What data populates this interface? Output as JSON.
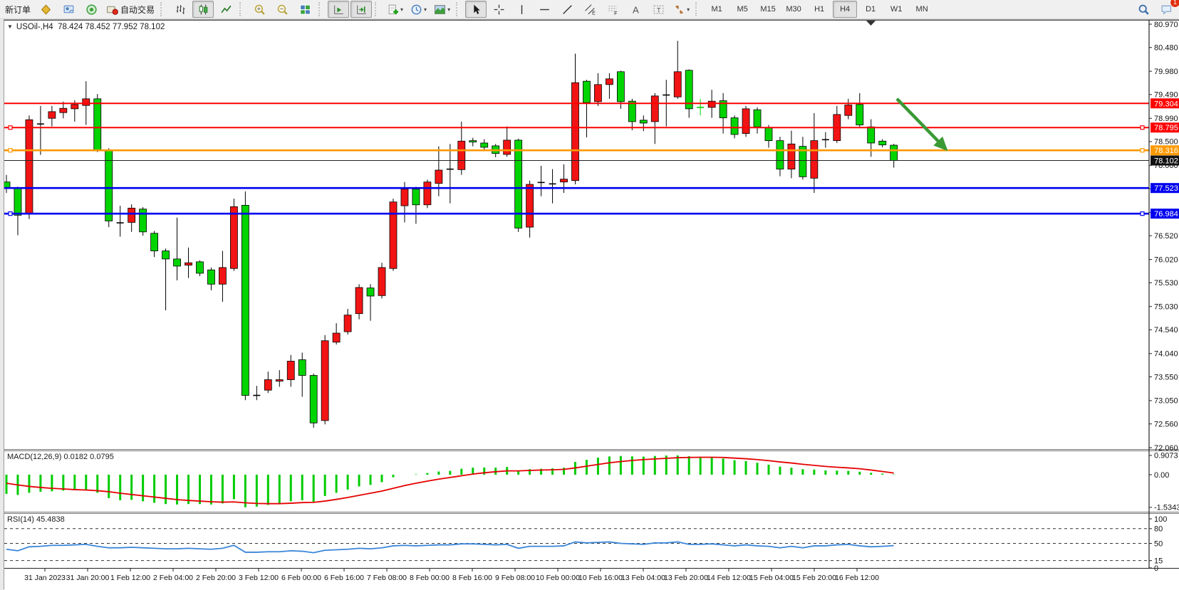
{
  "toolbar": {
    "new_order_label": "新订单",
    "autotrading_label": "自动交易",
    "timeframes": [
      "M1",
      "M5",
      "M15",
      "M30",
      "H1",
      "H4",
      "D1",
      "W1",
      "MN"
    ],
    "active_timeframe": "H4",
    "notification_count": "1",
    "tool_letters": {
      "channel": "E",
      "fibo": "F",
      "text": "A",
      "label": "T"
    }
  },
  "chart_data": {
    "type": "candlestick",
    "title_symbol": "USOil-,H4",
    "title_ohlc": "78.424 78.452 77.952 78.102",
    "current_bar": {
      "open": 78.424,
      "high": 78.452,
      "low": 77.952,
      "close": 78.102
    },
    "colors": {
      "up": "#f21414",
      "down": "#00d400",
      "doji": "#000000",
      "line_red": "#fe0000",
      "line_orange": "#ff9900",
      "line_blue": "#0000f0",
      "bid": "#111111",
      "macd_hist": "#00cc00",
      "macd_signal": "#e60000",
      "rsi": "#3b86d8",
      "arrow": "#3a9a35"
    },
    "price_axis_ticks": [
      "80.970",
      "80.480",
      "79.980",
      "79.490",
      "78.990",
      "78.500",
      "78.000",
      "77.510",
      "77.010",
      "76.520",
      "76.020",
      "75.530",
      "75.030",
      "74.540",
      "74.040",
      "73.550",
      "73.050",
      "72.560",
      "72.060"
    ],
    "horizontal_lines": [
      {
        "price": 79.304,
        "label": "79.304",
        "color": "#fe0000",
        "handles": false
      },
      {
        "price": 78.795,
        "label": "78.795",
        "color": "#fe0000",
        "handles": true
      },
      {
        "price": 78.316,
        "label": "78.316",
        "color": "#ff9900",
        "handles": true
      },
      {
        "price": 77.523,
        "label": "77.523",
        "color": "#0000f0",
        "handles": false
      },
      {
        "price": 76.984,
        "label": "76.984",
        "color": "#0000f0",
        "handles": true
      }
    ],
    "bid": {
      "price": 78.102,
      "label": "78.102"
    },
    "annotations": [
      {
        "type": "arrow",
        "direction": "down-right",
        "from_price": 79.4,
        "to_price": 78.28,
        "color": "#3a9a35"
      }
    ],
    "candles": [
      [
        77.65,
        77.8,
        77.42,
        77.53
      ],
      [
        77.51,
        77.55,
        76.53,
        76.95
      ],
      [
        76.97,
        79.05,
        76.87,
        78.96
      ],
      [
        78.87,
        79.25,
        78.22,
        78.87
      ],
      [
        78.99,
        79.25,
        78.82,
        79.13
      ],
      [
        79.11,
        79.34,
        78.99,
        79.2
      ],
      [
        79.19,
        79.37,
        78.92,
        79.28
      ],
      [
        79.26,
        79.77,
        78.85,
        79.4
      ],
      [
        79.4,
        79.5,
        78.28,
        78.32
      ],
      [
        78.32,
        78.36,
        76.7,
        76.83
      ],
      [
        76.79,
        77.15,
        76.5,
        76.79
      ],
      [
        76.8,
        77.18,
        76.6,
        77.1
      ],
      [
        77.08,
        77.12,
        76.52,
        76.6
      ],
      [
        76.57,
        76.62,
        76.07,
        76.2
      ],
      [
        76.2,
        76.25,
        74.95,
        76.03
      ],
      [
        76.03,
        76.9,
        75.58,
        75.88
      ],
      [
        75.9,
        76.27,
        75.63,
        75.95
      ],
      [
        75.97,
        76.0,
        75.67,
        75.73
      ],
      [
        75.8,
        75.85,
        75.37,
        75.5
      ],
      [
        75.5,
        76.2,
        75.13,
        75.85
      ],
      [
        75.83,
        77.3,
        75.78,
        77.13
      ],
      [
        77.16,
        77.45,
        73.06,
        73.16
      ],
      [
        73.16,
        73.36,
        73.06,
        73.16
      ],
      [
        73.27,
        73.66,
        73.21,
        73.49
      ],
      [
        73.46,
        73.69,
        73.34,
        73.49
      ],
      [
        73.49,
        74.01,
        73.34,
        73.88
      ],
      [
        73.91,
        74.06,
        73.13,
        73.58
      ],
      [
        73.58,
        73.62,
        72.48,
        72.58
      ],
      [
        72.63,
        74.43,
        72.55,
        74.31
      ],
      [
        74.28,
        74.68,
        74.23,
        74.47
      ],
      [
        74.5,
        74.98,
        74.44,
        74.85
      ],
      [
        74.88,
        75.5,
        74.76,
        75.43
      ],
      [
        75.42,
        75.5,
        74.73,
        75.25
      ],
      [
        75.26,
        75.95,
        75.2,
        75.85
      ],
      [
        75.83,
        77.3,
        75.78,
        77.23
      ],
      [
        77.15,
        77.65,
        76.8,
        77.5
      ],
      [
        77.5,
        77.55,
        76.77,
        77.17
      ],
      [
        77.17,
        77.7,
        77.1,
        77.65
      ],
      [
        77.62,
        78.4,
        77.35,
        77.9
      ],
      [
        77.92,
        78.45,
        77.2,
        77.92
      ],
      [
        77.91,
        78.92,
        77.8,
        78.51
      ],
      [
        78.52,
        78.58,
        78.4,
        78.49
      ],
      [
        78.47,
        78.55,
        78.3,
        78.38
      ],
      [
        78.41,
        78.45,
        78.17,
        78.25
      ],
      [
        78.23,
        78.82,
        78.18,
        78.53
      ],
      [
        78.53,
        78.56,
        76.6,
        76.68
      ],
      [
        76.7,
        77.68,
        76.48,
        77.6
      ],
      [
        77.64,
        77.99,
        77.35,
        77.64
      ],
      [
        77.61,
        77.92,
        77.2,
        77.61
      ],
      [
        77.65,
        78.02,
        77.42,
        77.71
      ],
      [
        77.68,
        80.35,
        77.6,
        79.74
      ],
      [
        79.77,
        79.8,
        78.59,
        79.32
      ],
      [
        79.34,
        79.94,
        79.25,
        79.7
      ],
      [
        79.7,
        79.94,
        79.4,
        79.82
      ],
      [
        79.97,
        79.99,
        79.19,
        79.34
      ],
      [
        79.35,
        79.4,
        78.74,
        78.92
      ],
      [
        78.95,
        79.05,
        78.72,
        78.89
      ],
      [
        78.92,
        79.52,
        78.45,
        79.46
      ],
      [
        79.48,
        79.8,
        78.82,
        79.48
      ],
      [
        79.44,
        80.62,
        79.4,
        79.97
      ],
      [
        80.0,
        80.02,
        79.0,
        79.19
      ],
      [
        79.22,
        79.4,
        79.05,
        79.22,
        "g"
      ],
      [
        79.22,
        79.59,
        79.0,
        79.35
      ],
      [
        79.36,
        79.52,
        78.67,
        79.0
      ],
      [
        79.0,
        79.05,
        78.57,
        78.65
      ],
      [
        78.67,
        79.25,
        78.6,
        79.19
      ],
      [
        79.17,
        79.22,
        78.67,
        78.81
      ],
      [
        78.8,
        78.85,
        78.37,
        78.52
      ],
      [
        78.52,
        78.6,
        77.77,
        77.92
      ],
      [
        77.92,
        78.73,
        77.73,
        78.45
      ],
      [
        78.4,
        78.6,
        77.7,
        77.76
      ],
      [
        77.73,
        79.1,
        77.42,
        78.52
      ],
      [
        78.54,
        78.7,
        78.37,
        78.54
      ],
      [
        78.52,
        79.25,
        78.47,
        79.07
      ],
      [
        79.05,
        79.4,
        78.97,
        79.27
      ],
      [
        79.28,
        79.52,
        78.81,
        78.85
      ],
      [
        78.81,
        78.97,
        78.18,
        78.47
      ],
      [
        78.51,
        78.55,
        78.38,
        78.43
      ],
      [
        78.424,
        78.452,
        77.952,
        78.102
      ]
    ],
    "macd": {
      "label": "MACD(12,26,9)",
      "values_text": "0.0182 0.0795",
      "main_last": 0.0182,
      "signal_last": 0.0795,
      "axis_labels": [
        "0.9073",
        "0.00",
        "-1.5343"
      ],
      "axis_values": [
        0.9073,
        0.0,
        -1.5343
      ],
      "histogram": [
        -0.9,
        -0.95,
        -0.85,
        -0.8,
        -0.78,
        -0.75,
        -0.72,
        -0.7,
        -0.85,
        -1.1,
        -1.2,
        -1.18,
        -1.25,
        -1.32,
        -1.38,
        -1.4,
        -1.38,
        -1.38,
        -1.4,
        -1.35,
        -1.15,
        -1.53,
        -1.5,
        -1.42,
        -1.35,
        -1.25,
        -1.2,
        -1.28,
        -1.0,
        -0.85,
        -0.7,
        -0.55,
        -0.48,
        -0.35,
        -0.12,
        0.0,
        0.02,
        0.08,
        0.15,
        0.18,
        0.28,
        0.33,
        0.34,
        0.33,
        0.36,
        0.2,
        0.26,
        0.28,
        0.3,
        0.33,
        0.6,
        0.7,
        0.8,
        0.86,
        0.88,
        0.86,
        0.85,
        0.88,
        0.9,
        0.9073,
        0.87,
        0.84,
        0.82,
        0.76,
        0.68,
        0.64,
        0.56,
        0.47,
        0.38,
        0.33,
        0.26,
        0.24,
        0.2,
        0.19,
        0.18,
        0.14,
        0.09,
        0.05,
        0.0182
      ],
      "signal": [
        -0.4,
        -0.48,
        -0.55,
        -0.6,
        -0.64,
        -0.67,
        -0.7,
        -0.72,
        -0.75,
        -0.8,
        -0.87,
        -0.93,
        -0.99,
        -1.05,
        -1.11,
        -1.17,
        -1.21,
        -1.24,
        -1.27,
        -1.29,
        -1.28,
        -1.32,
        -1.35,
        -1.36,
        -1.36,
        -1.34,
        -1.31,
        -1.3,
        -1.24,
        -1.16,
        -1.07,
        -0.97,
        -0.87,
        -0.77,
        -0.64,
        -0.51,
        -0.4,
        -0.3,
        -0.21,
        -0.13,
        -0.05,
        0.03,
        0.09,
        0.14,
        0.18,
        0.18,
        0.2,
        0.22,
        0.23,
        0.25,
        0.32,
        0.4,
        0.48,
        0.56,
        0.62,
        0.67,
        0.71,
        0.74,
        0.77,
        0.8,
        0.81,
        0.82,
        0.82,
        0.81,
        0.78,
        0.75,
        0.71,
        0.66,
        0.6,
        0.55,
        0.49,
        0.44,
        0.39,
        0.35,
        0.32,
        0.28,
        0.22,
        0.15,
        0.0795
      ]
    },
    "rsi": {
      "label": "RSI(14)",
      "value_text": "45.4838",
      "last": 45.4838,
      "axis_labels": [
        "100",
        "80",
        "50",
        "15",
        "0"
      ],
      "levels": [
        80,
        50,
        15
      ],
      "values": [
        38,
        35,
        43,
        44,
        46,
        46,
        47,
        48,
        44,
        41,
        41,
        42,
        41,
        40,
        39,
        39,
        40,
        39,
        38,
        40,
        46,
        32,
        32,
        33,
        33,
        35,
        34,
        31,
        36,
        37,
        38,
        40,
        39,
        41,
        45,
        46,
        45,
        46,
        47,
        47,
        49,
        49,
        48,
        47,
        48,
        40,
        44,
        44,
        44,
        45,
        53,
        51,
        52,
        53,
        50,
        49,
        48,
        51,
        51,
        53,
        48,
        48,
        49,
        47,
        45,
        47,
        45,
        44,
        41,
        44,
        41,
        45,
        45,
        47,
        48,
        45,
        43,
        44,
        45.4838
      ]
    },
    "x_axis_labels": [
      "31 Jan 2023",
      "31 Jan 20:00",
      "1 Feb 12:00",
      "2 Feb 04:00",
      "2 Feb 20:00",
      "3 Feb 12:00",
      "6 Feb 00:00",
      "6 Feb 16:00",
      "7 Feb 08:00",
      "8 Feb 00:00",
      "8 Feb 16:00",
      "9 Feb 08:00",
      "10 Feb 00:00",
      "10 Feb 16:00",
      "13 Feb 04:00",
      "13 Feb 20:00",
      "14 Feb 12:00",
      "15 Feb 04:00",
      "15 Feb 20:00",
      "16 Feb 12:00"
    ]
  }
}
